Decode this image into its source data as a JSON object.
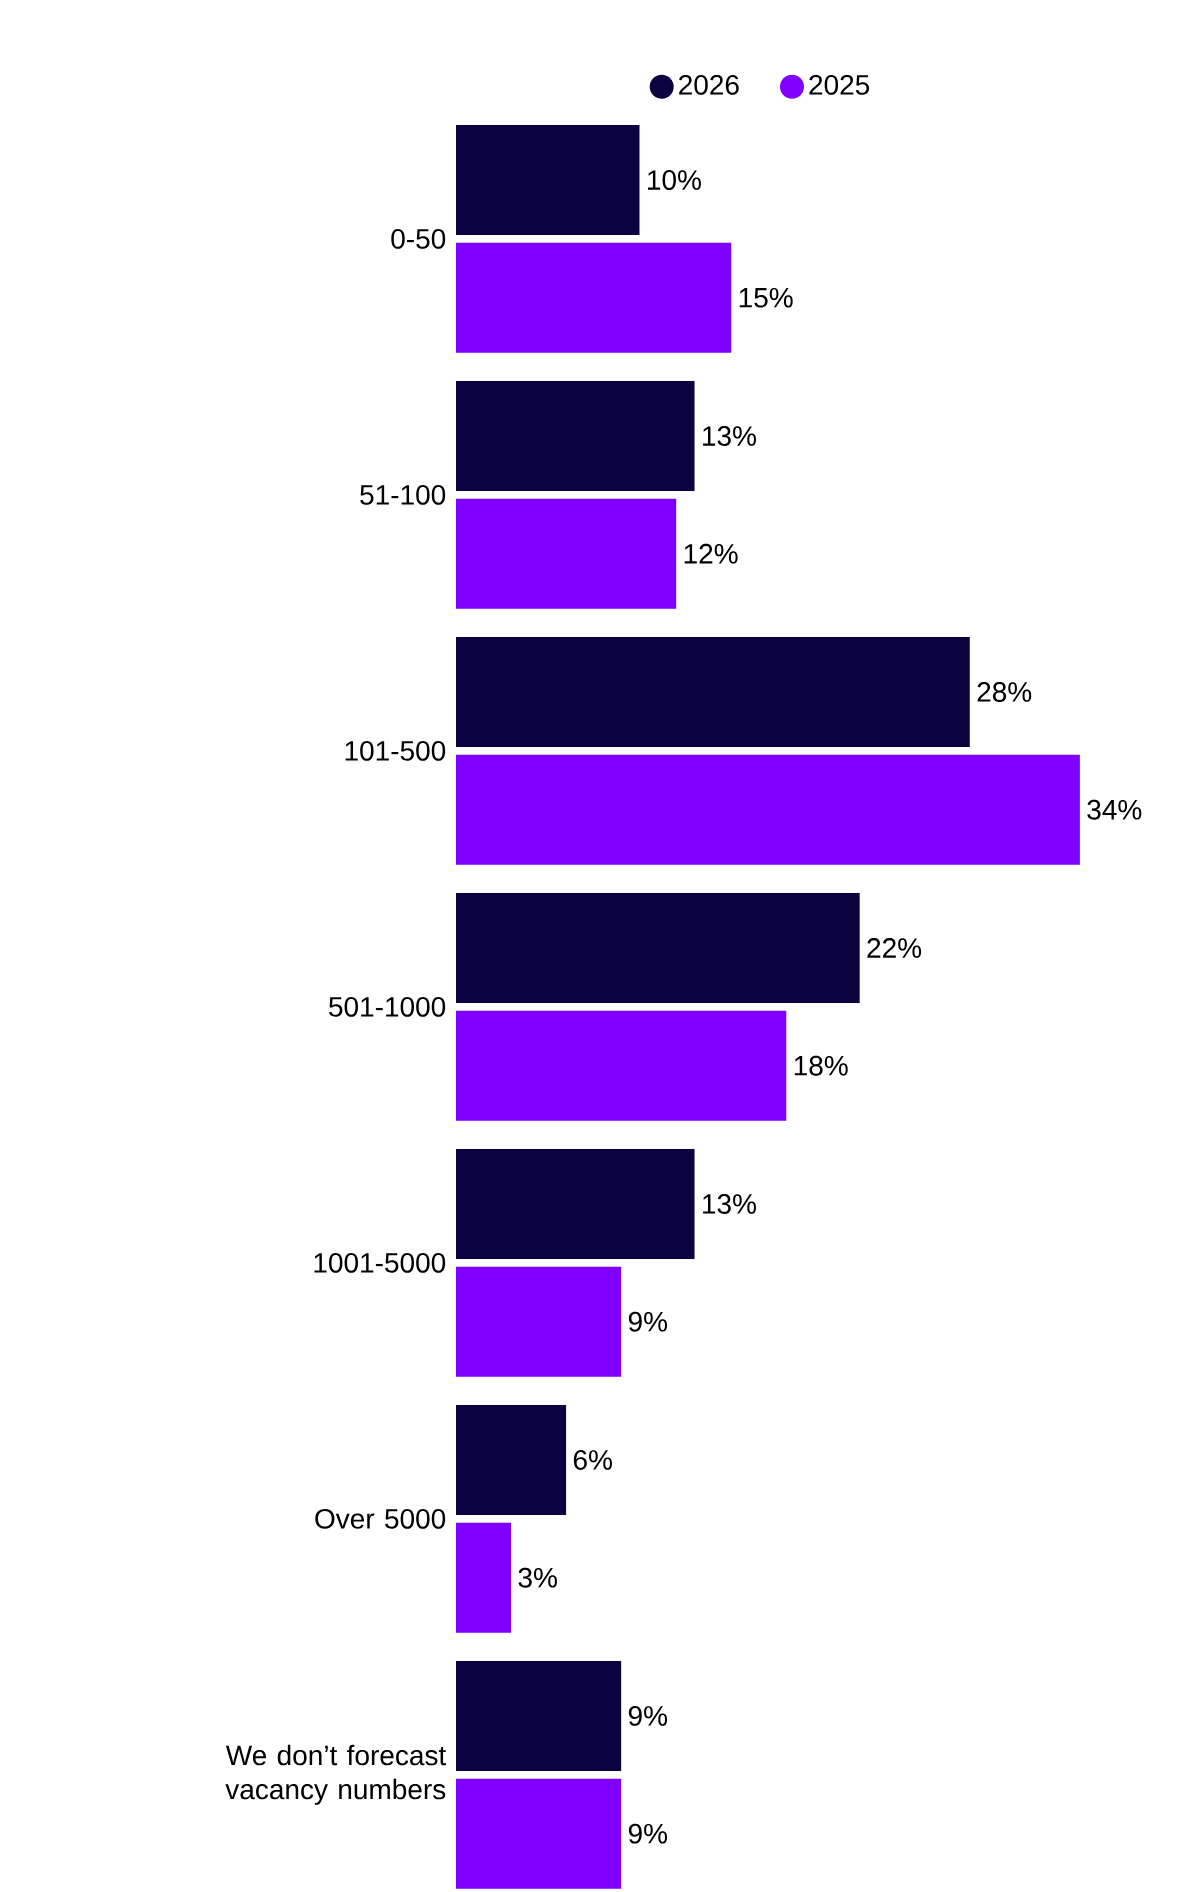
{
  "chart_data": {
    "type": "bar",
    "orientation": "horizontal",
    "legend": "top",
    "categories": [
      "0-50",
      "51-100",
      "101-500",
      "501-1000",
      "1001-5000",
      "Over 5000",
      "We don’t forecast vacancy numbers"
    ],
    "series": [
      {
        "name": "2026",
        "color": "#0b0340",
        "values": [
          10,
          13,
          28,
          22,
          13,
          6,
          9
        ],
        "value_labels": [
          "10%",
          "13%",
          "28%",
          "22%",
          "13%",
          "6%",
          "9%"
        ]
      },
      {
        "name": "2025",
        "color": "#7f00ff",
        "values": [
          15,
          12,
          34,
          18,
          9,
          3,
          9
        ],
        "value_labels": [
          "15%",
          "12%",
          "34%",
          "18%",
          "9%",
          "3%",
          "9%"
        ]
      }
    ]
  }
}
